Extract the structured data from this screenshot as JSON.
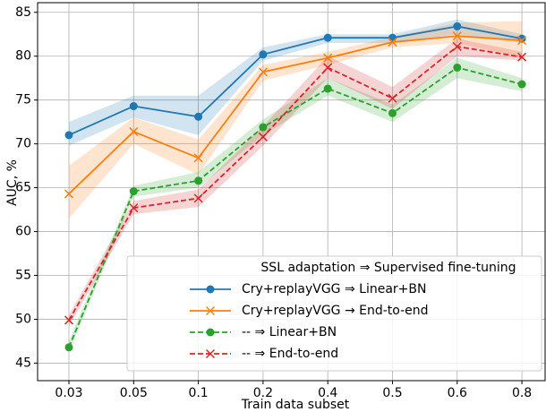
{
  "chart_data": {
    "type": "line",
    "xlabel": "Train data subset",
    "ylabel": "AUC, %",
    "categories": [
      "0.03",
      "0.05",
      "0.1",
      "0.2",
      "0.4",
      "0.5",
      "0.6",
      "0.8"
    ],
    "ylim": [
      43,
      86.1
    ],
    "yticks": [
      45,
      50,
      55,
      60,
      65,
      70,
      75,
      80,
      85
    ],
    "grid": true,
    "legend_title": "SSL adaptation ⇒ Supervised fine-tuning",
    "legend_position": "lower right",
    "series": [
      {
        "name": "Cry+replayVGG ⇒ Linear+BN",
        "color": "#1f77b4",
        "marker": "circle",
        "dashed": false,
        "values": [
          71.0,
          74.3,
          73.1,
          80.2,
          82.1,
          82.1,
          83.4,
          82.0
        ],
        "upper": [
          72.5,
          75.5,
          75.5,
          81.0,
          82.5,
          82.5,
          84.2,
          82.5
        ],
        "lower": [
          69.8,
          73.0,
          71.0,
          79.5,
          81.5,
          81.5,
          82.5,
          81.5
        ]
      },
      {
        "name": "Cry+replayVGG → End-to-end",
        "color": "#ff7f0e",
        "marker": "x",
        "dashed": false,
        "values": [
          64.3,
          71.4,
          68.4,
          78.2,
          79.8,
          81.6,
          82.3,
          81.8
        ],
        "upper": [
          67.5,
          73.0,
          70.5,
          79.0,
          80.5,
          82.2,
          83.8,
          84.0
        ],
        "lower": [
          61.5,
          70.0,
          66.5,
          77.2,
          79.0,
          81.0,
          81.5,
          79.8
        ]
      },
      {
        "name": "-- ⇒ Linear+BN",
        "color": "#2ca02c",
        "marker": "circle",
        "dashed": true,
        "values": [
          46.8,
          64.6,
          65.8,
          71.9,
          76.3,
          73.5,
          78.7,
          76.8
        ],
        "upper": [
          47.5,
          65.2,
          66.8,
          72.8,
          77.5,
          74.5,
          79.8,
          77.5
        ],
        "lower": [
          46.2,
          64.0,
          65.0,
          71.0,
          75.5,
          72.5,
          77.5,
          76.0
        ]
      },
      {
        "name": "-- ⇒ End-to-end",
        "color": "#d62728",
        "marker": "x",
        "dashed": true,
        "values": [
          49.9,
          62.7,
          63.8,
          70.8,
          78.7,
          75.2,
          81.1,
          79.9
        ],
        "upper": [
          50.5,
          63.5,
          64.8,
          72.0,
          80.0,
          76.5,
          82.0,
          80.5
        ],
        "lower": [
          49.2,
          62.0,
          62.8,
          69.8,
          77.5,
          74.0,
          80.0,
          79.5
        ]
      }
    ]
  }
}
